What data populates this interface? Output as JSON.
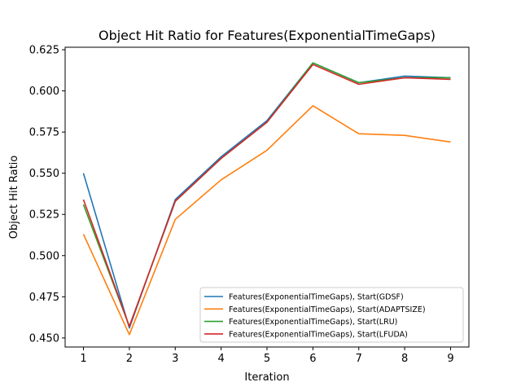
{
  "chart_data": {
    "type": "line",
    "title": "Object Hit Ratio for Features(ExponentialTimeGaps)",
    "xlabel": "Iteration",
    "ylabel": "Object Hit Ratio",
    "xlim": [
      0.6,
      9.4
    ],
    "ylim": [
      0.4445,
      0.6265
    ],
    "x": [
      1,
      2,
      3,
      4,
      5,
      6,
      7,
      8,
      9
    ],
    "xticks": [
      "1",
      "2",
      "3",
      "4",
      "5",
      "6",
      "7",
      "8",
      "9"
    ],
    "yticks": [
      0.45,
      0.475,
      0.5,
      0.525,
      0.55,
      0.575,
      0.6,
      0.625
    ],
    "ytick_labels": [
      "0.450",
      "0.475",
      "0.500",
      "0.525",
      "0.550",
      "0.575",
      "0.600",
      "0.625"
    ],
    "grid": false,
    "legend_position": "lower-right",
    "series": [
      {
        "name": "Features(ExponentialTimeGaps), Start(GDSF)",
        "color": "#1f77b4",
        "values": [
          0.55,
          0.456,
          0.534,
          0.56,
          0.582,
          0.617,
          0.605,
          0.609,
          0.608
        ]
      },
      {
        "name": "Features(ExponentialTimeGaps), Start(ADAPTSIZE)",
        "color": "#ff7f0e",
        "values": [
          0.513,
          0.452,
          0.522,
          0.546,
          0.564,
          0.591,
          0.574,
          0.573,
          0.569
        ]
      },
      {
        "name": "Features(ExponentialTimeGaps), Start(LRU)",
        "color": "#2ca02c",
        "values": [
          0.531,
          0.457,
          0.533,
          0.559,
          0.581,
          0.617,
          0.605,
          0.608,
          0.608
        ]
      },
      {
        "name": "Features(ExponentialTimeGaps), Start(LFUDA)",
        "color": "#d62728",
        "values": [
          0.534,
          0.457,
          0.533,
          0.559,
          0.581,
          0.616,
          0.604,
          0.608,
          0.607
        ]
      }
    ]
  }
}
